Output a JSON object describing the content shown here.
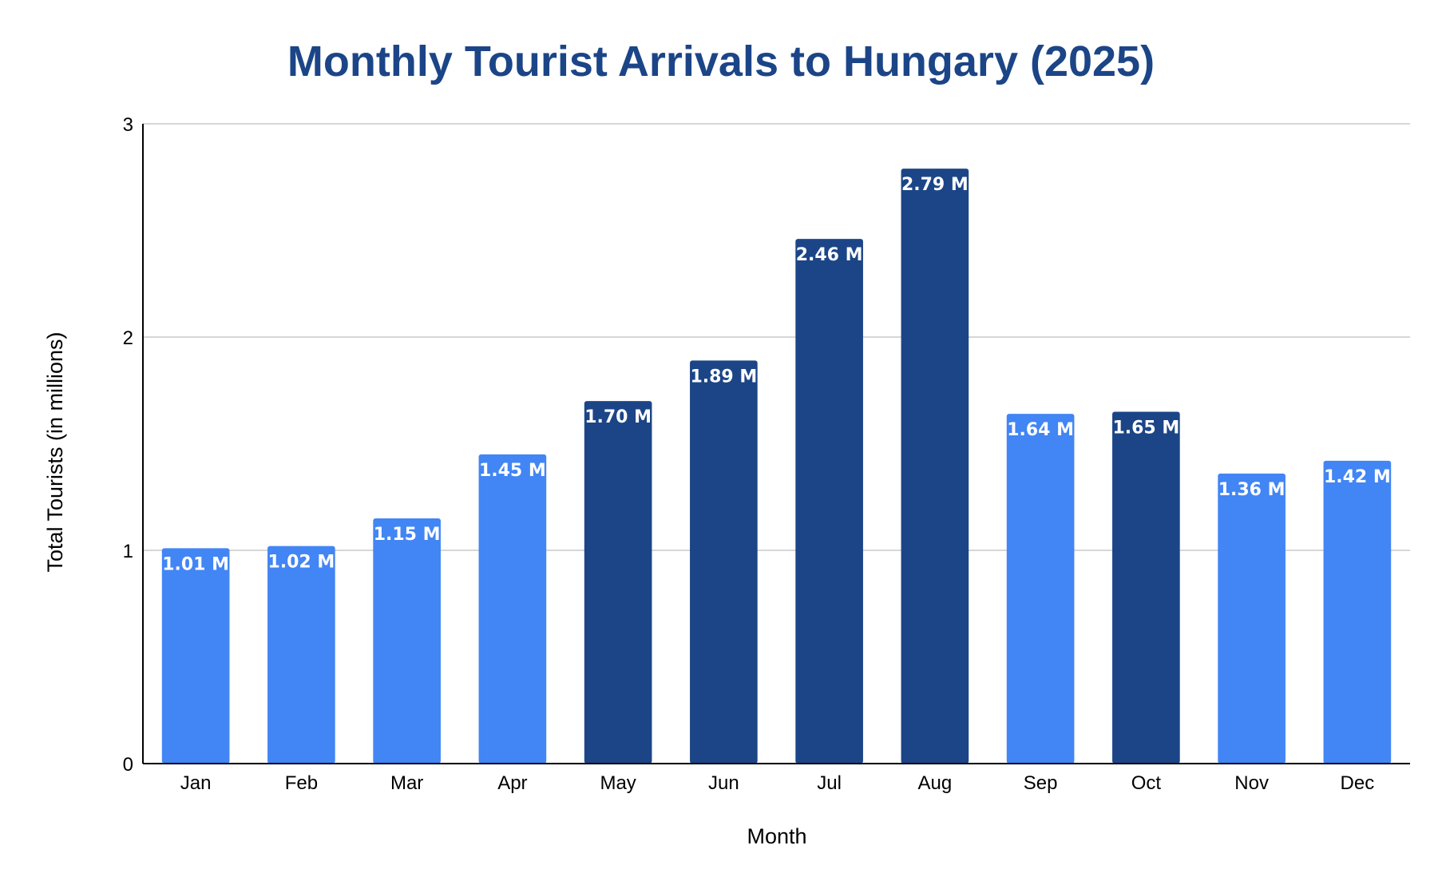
{
  "chart_data": {
    "type": "bar",
    "title": "Monthly Tourist Arrivals to Hungary (2025)",
    "xlabel": "Month",
    "ylabel": "Total Tourists (in millions)",
    "categories": [
      "Jan",
      "Feb",
      "Mar",
      "Apr",
      "May",
      "Jun",
      "Jul",
      "Aug",
      "Sep",
      "Oct",
      "Nov",
      "Dec"
    ],
    "values": [
      1.01,
      1.02,
      1.15,
      1.45,
      1.7,
      1.89,
      2.46,
      2.79,
      1.64,
      1.65,
      1.36,
      1.42
    ],
    "data_labels": [
      "1.01 M",
      "1.02 M",
      "1.15 M",
      "1.45 M",
      "1.70 M",
      "1.89 M",
      "2.46 M",
      "2.79 M",
      "1.64 M",
      "1.65 M",
      "1.36 M",
      "1.42 M"
    ],
    "bar_colors": [
      "#4285f4",
      "#4285f4",
      "#4285f4",
      "#4285f4",
      "#1c4587",
      "#1c4587",
      "#1c4587",
      "#1c4587",
      "#4285f4",
      "#1c4587",
      "#4285f4",
      "#4285f4"
    ],
    "ylim": [
      0,
      3
    ],
    "yticks": [
      0,
      1,
      2,
      3
    ],
    "ytick_labels": [
      "0",
      "1",
      "2",
      "3"
    ],
    "grid": true,
    "legend": "none",
    "colors": {
      "title": "#1c4587",
      "light_bar": "#4285f4",
      "dark_bar": "#1c4587",
      "grid": "#c8c8c8"
    }
  }
}
